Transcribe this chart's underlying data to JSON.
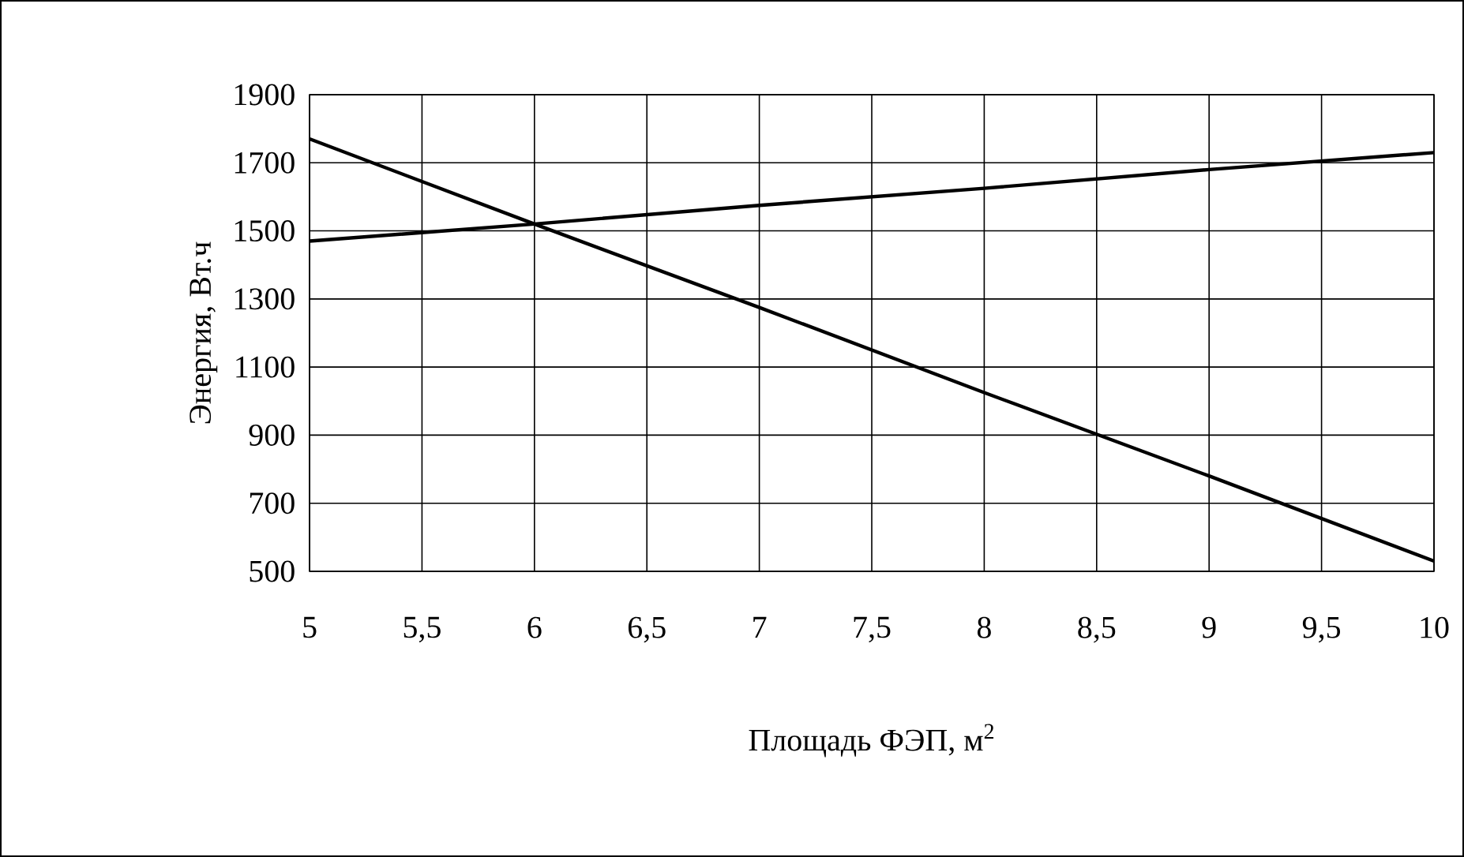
{
  "chart_data": {
    "type": "line",
    "xlabel": "Площадь ФЭП, м$^{2}$",
    "ylabel": "Энергия, Вт.ч",
    "series": [
      {
        "color": "#000000",
        "x": [
          5,
          6,
          7,
          8,
          9,
          10
        ],
        "values": [
          1470,
          1520,
          1575,
          1625,
          1680,
          1730
        ]
      },
      {
        "color": "#000000",
        "x": [
          5,
          6,
          7,
          8,
          9,
          10
        ],
        "values": [
          1770,
          1520,
          1275,
          1025,
          780,
          530
        ]
      }
    ],
    "xlim": [
      5,
      10
    ],
    "ylim": [
      500,
      1900
    ],
    "xticks": [
      5,
      {
        "value": 5.5,
        "label": "5,5"
      },
      6,
      {
        "value": 6.5,
        "label": "6,5"
      },
      7,
      {
        "value": 7.5,
        "label": "7,5"
      },
      8,
      {
        "value": 8.5,
        "label": "8,5"
      },
      9,
      {
        "value": 9.5,
        "label": "9,5"
      },
      10
    ],
    "yticks": [
      500,
      700,
      900,
      1100,
      1300,
      1500,
      1700,
      1900
    ],
    "grid": true,
    "marker": "none",
    "line_style": "solid"
  }
}
